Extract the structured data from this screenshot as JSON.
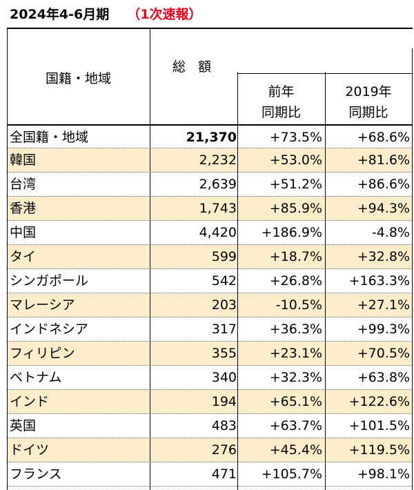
{
  "title": {
    "main": "2024年4-6月期",
    "sub": "（1次速報）"
  },
  "header": {
    "nationality": "国籍・地域",
    "total": "総 額",
    "yoy_line1": "前年",
    "yoy_line2": "同期比",
    "vs2019_line1": "2019年",
    "vs2019_line2": "同期比"
  },
  "rows": [
    {
      "name": "全国籍・地域",
      "total": "21,370",
      "yoy": "+73.5%",
      "vs2019": "+68.6%"
    },
    {
      "name": "韓国",
      "total": "2,232",
      "yoy": "+53.0%",
      "vs2019": "+81.6%"
    },
    {
      "name": "台湾",
      "total": "2,639",
      "yoy": "+51.2%",
      "vs2019": "+86.6%"
    },
    {
      "name": "香港",
      "total": "1,743",
      "yoy": "+85.9%",
      "vs2019": "+94.3%"
    },
    {
      "name": "中国",
      "total": "4,420",
      "yoy": "+186.9%",
      "vs2019": "-4.8%"
    },
    {
      "name": "タイ",
      "total": "599",
      "yoy": "+18.7%",
      "vs2019": "+32.8%"
    },
    {
      "name": "シンガポール",
      "total": "542",
      "yoy": "+26.8%",
      "vs2019": "+163.3%"
    },
    {
      "name": "マレーシア",
      "total": "203",
      "yoy": "-10.5%",
      "vs2019": "+27.1%"
    },
    {
      "name": "インドネシア",
      "total": "317",
      "yoy": "+36.3%",
      "vs2019": "+99.3%"
    },
    {
      "name": "フィリピン",
      "total": "355",
      "yoy": "+23.1%",
      "vs2019": "+70.5%"
    },
    {
      "name": "ベトナム",
      "total": "340",
      "yoy": "+32.3%",
      "vs2019": "+63.8%"
    },
    {
      "name": "インド",
      "total": "194",
      "yoy": "+65.1%",
      "vs2019": "+122.6%"
    },
    {
      "name": "英国",
      "total": "483",
      "yoy": "+63.7%",
      "vs2019": "+101.5%"
    },
    {
      "name": "ドイツ",
      "total": "276",
      "yoy": "+45.4%",
      "vs2019": "+119.5%"
    },
    {
      "name": "フランス",
      "total": "471",
      "yoy": "+105.7%",
      "vs2019": "+98.1%"
    }
  ]
}
